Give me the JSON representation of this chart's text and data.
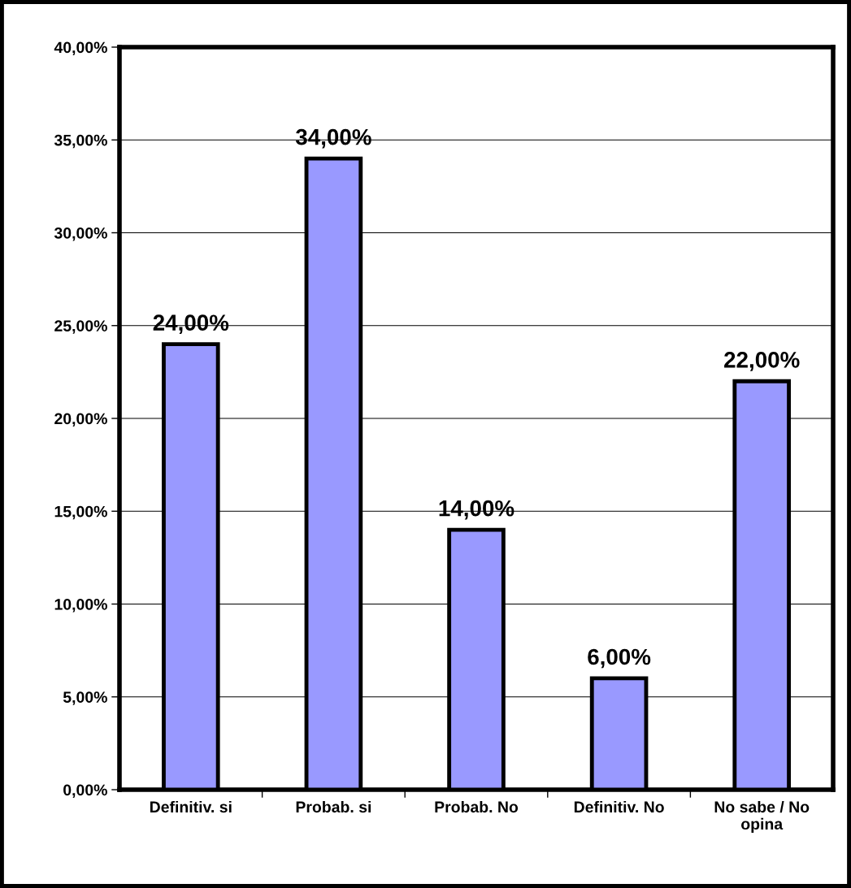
{
  "chart_data": {
    "type": "bar",
    "categories": [
      "Definitiv. si",
      "Probab. si",
      "Probab. No",
      "Definitiv. No",
      "No sabe / No opina"
    ],
    "values": [
      24,
      34,
      14,
      6,
      22
    ],
    "value_labels": [
      "24,00%",
      "34,00%",
      "14,00%",
      "6,00%",
      "22,00%"
    ],
    "color": "#9999ff",
    "ylim": [
      0,
      40
    ],
    "yticks": [
      {
        "value": 0,
        "label": "0,00%"
      },
      {
        "value": 5,
        "label": "5,00%"
      },
      {
        "value": 10,
        "label": "10,00%"
      },
      {
        "value": 15,
        "label": "15,00%"
      },
      {
        "value": 20,
        "label": "20,00%"
      },
      {
        "value": 25,
        "label": "25,00%"
      },
      {
        "value": 30,
        "label": "30,00%"
      },
      {
        "value": 35,
        "label": "35,00%"
      },
      {
        "value": 40,
        "label": "40,00%"
      }
    ],
    "grid": "y",
    "legend": false
  }
}
